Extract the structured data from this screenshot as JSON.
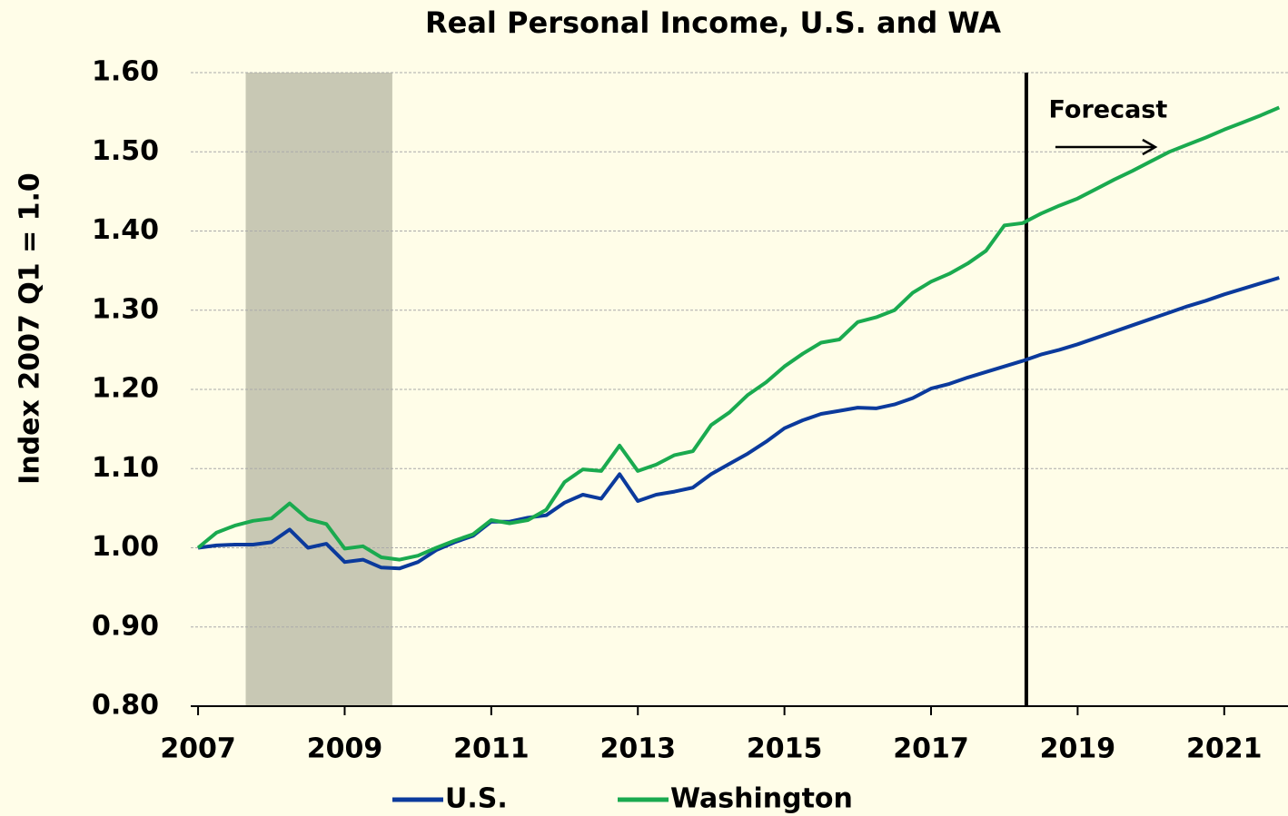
{
  "chart_data": {
    "type": "line",
    "title": "Real Personal Income, U.S. and WA",
    "ylabel": "Index 2007 Q1 = 1.0",
    "x": [
      2007,
      2007.25,
      2007.5,
      2007.75,
      2008,
      2008.25,
      2008.5,
      2008.75,
      2009,
      2009.25,
      2009.5,
      2009.75,
      2010,
      2010.25,
      2010.5,
      2010.75,
      2011,
      2011.25,
      2011.5,
      2011.75,
      2012,
      2012.25,
      2012.5,
      2012.75,
      2013,
      2013.25,
      2013.5,
      2013.75,
      2014,
      2014.25,
      2014.5,
      2014.75,
      2015,
      2015.25,
      2015.5,
      2015.75,
      2016,
      2016.25,
      2016.5,
      2016.75,
      2017,
      2017.25,
      2017.5,
      2017.75,
      2018,
      2018.25,
      2018.5,
      2018.75,
      2019,
      2019.25,
      2019.5,
      2019.75,
      2020,
      2020.25,
      2020.5,
      2020.75,
      2021,
      2021.25,
      2021.5,
      2021.75
    ],
    "series": [
      {
        "name": "U.S.",
        "color": "#0b3a9c",
        "values": [
          1.0,
          1.003,
          1.004,
          1.004,
          1.007,
          1.023,
          1.0,
          1.005,
          0.982,
          0.985,
          0.975,
          0.974,
          0.982,
          0.997,
          1.007,
          1.015,
          1.033,
          1.033,
          1.038,
          1.041,
          1.057,
          1.067,
          1.062,
          1.093,
          1.059,
          1.067,
          1.071,
          1.076,
          1.093,
          1.106,
          1.119,
          1.134,
          1.151,
          1.161,
          1.169,
          1.173,
          1.177,
          1.176,
          1.181,
          1.189,
          1.201,
          1.207,
          1.215,
          1.222,
          1.229,
          1.236,
          1.244,
          1.25,
          1.257,
          1.265,
          1.273,
          1.281,
          1.289,
          1.297,
          1.305,
          1.312,
          1.32,
          1.327,
          1.334,
          1.341
        ]
      },
      {
        "name": "Washington",
        "color": "#1aaa4f",
        "values": [
          1.0,
          1.019,
          1.028,
          1.034,
          1.037,
          1.056,
          1.036,
          1.03,
          0.999,
          1.002,
          0.988,
          0.985,
          0.99,
          1.0,
          1.009,
          1.017,
          1.035,
          1.031,
          1.035,
          1.048,
          1.083,
          1.099,
          1.097,
          1.129,
          1.097,
          1.105,
          1.117,
          1.122,
          1.155,
          1.171,
          1.193,
          1.209,
          1.229,
          1.245,
          1.259,
          1.263,
          1.285,
          1.291,
          1.3,
          1.322,
          1.336,
          1.346,
          1.359,
          1.375,
          1.407,
          1.41,
          1.422,
          1.432,
          1.441,
          1.453,
          1.465,
          1.476,
          1.488,
          1.5,
          1.509,
          1.518,
          1.528,
          1.537,
          1.546,
          1.556
        ]
      }
    ],
    "xlim": [
      2006.9,
      2021.87
    ],
    "xticks": [
      2007,
      2009,
      2011,
      2013,
      2015,
      2017,
      2019,
      2021
    ],
    "ylim": [
      0.8,
      1.6
    ],
    "yticks": [
      {
        "value": 0.8,
        "label": "0.80"
      },
      {
        "value": 0.9,
        "label": "0.90"
      },
      {
        "value": 1.0,
        "label": "1.00"
      },
      {
        "value": 1.1,
        "label": "1.10"
      },
      {
        "value": 1.2,
        "label": "1.20"
      },
      {
        "value": 1.3,
        "label": "1.30"
      },
      {
        "value": 1.4,
        "label": "1.40"
      },
      {
        "value": 1.5,
        "label": "1.50"
      },
      {
        "value": 1.6,
        "label": "1.60"
      }
    ],
    "grid": true,
    "recession": {
      "x0": 2007.65,
      "x1": 2009.65,
      "color": "#c8c8b4"
    },
    "forecast": {
      "x": 2018.3,
      "label": "Forecast"
    },
    "legend": "bottom"
  }
}
